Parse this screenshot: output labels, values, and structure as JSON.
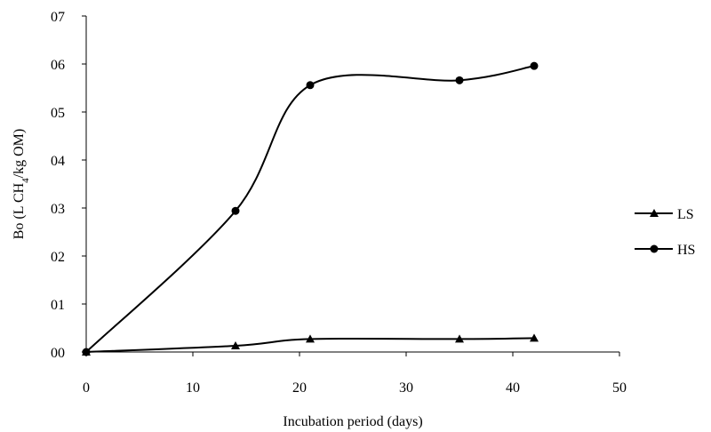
{
  "chart_data": {
    "type": "line",
    "title": "",
    "xlabel": "Incubation period (days)",
    "ylabel": "Bo (L CH4/kg OM)",
    "ylabel_parts": {
      "before": "Bo (L CH",
      "sub": "4",
      "after": "/kg OM)"
    },
    "xlim": [
      0,
      50
    ],
    "ylim": [
      0,
      0.7
    ],
    "x_ticks": [
      {
        "value": 0,
        "label": "0"
      },
      {
        "value": 10,
        "label": "10"
      },
      {
        "value": 20,
        "label": "20"
      },
      {
        "value": 30,
        "label": "30"
      },
      {
        "value": 40,
        "label": "40"
      },
      {
        "value": 50,
        "label": "50"
      }
    ],
    "y_ticks": [
      {
        "value": 0,
        "label": "00"
      },
      {
        "value": 0.1,
        "label": "01"
      },
      {
        "value": 0.2,
        "label": "02"
      },
      {
        "value": 0.3,
        "label": "03"
      },
      {
        "value": 0.4,
        "label": "04"
      },
      {
        "value": 0.5,
        "label": "05"
      },
      {
        "value": 0.6,
        "label": "06"
      },
      {
        "value": 0.7,
        "label": "07"
      }
    ],
    "grid": false,
    "legend_position": "right",
    "smooth": true,
    "series": [
      {
        "name": "LS",
        "marker": "triangle",
        "color": "#000000",
        "points": [
          [
            0,
            0.0
          ],
          [
            14,
            0.013
          ],
          [
            21,
            0.027
          ],
          [
            35,
            0.027
          ],
          [
            42,
            0.029
          ]
        ]
      },
      {
        "name": "HS",
        "marker": "circle",
        "color": "#000000",
        "points": [
          [
            0,
            0.0
          ],
          [
            14,
            0.294
          ],
          [
            21,
            0.556
          ],
          [
            35,
            0.566
          ],
          [
            42,
            0.596
          ]
        ]
      }
    ]
  }
}
